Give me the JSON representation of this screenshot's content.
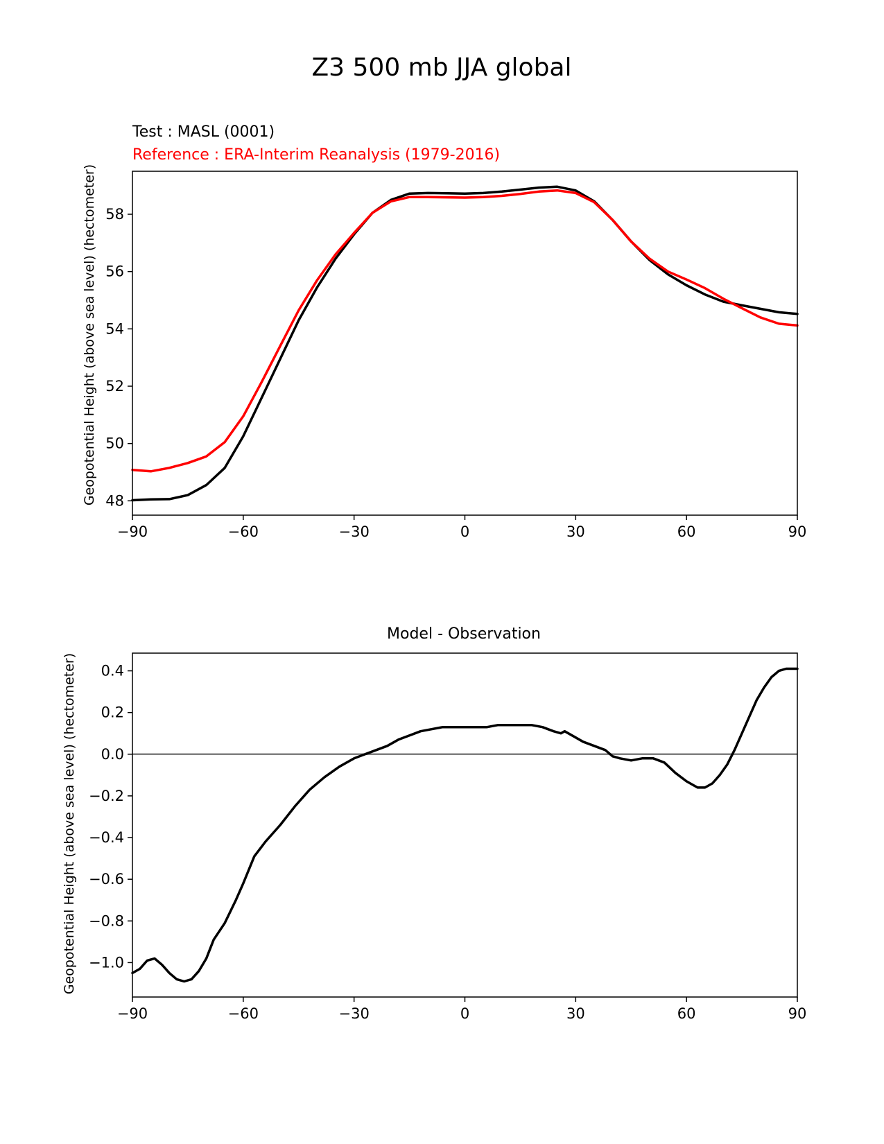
{
  "figure": {
    "title": "Z3 500 mb JJA global"
  },
  "colors": {
    "test": "#000000",
    "reference": "#ff0000",
    "diff": "#000000",
    "zero_line": "#808080"
  },
  "chart_data": [
    {
      "type": "line",
      "test_label": "Test : MASL (0001)",
      "reference_label": "Reference : ERA-Interim Reanalysis (1979-2016)",
      "xlabel": "",
      "ylabel": "Geopotential Height (above sea level) (hectometer)",
      "xlim": [
        -90,
        90
      ],
      "ylim": [
        47.5,
        59.5
      ],
      "xticks": [
        -90,
        -60,
        -30,
        0,
        30,
        60,
        90
      ],
      "xtick_labels": [
        "−90",
        "−60",
        "−30",
        "0",
        "30",
        "60",
        "90"
      ],
      "yticks": [
        48,
        50,
        52,
        54,
        56,
        58
      ],
      "ytick_labels": [
        "48",
        "50",
        "52",
        "54",
        "56",
        "58"
      ],
      "grid": false,
      "series": [
        {
          "name": "Test : MASL (0001)",
          "color": "#000000",
          "x": [
            -90,
            -85,
            -80,
            -75,
            -70,
            -65,
            -60,
            -55,
            -50,
            -45,
            -40,
            -35,
            -30,
            -25,
            -20,
            -15,
            -10,
            -5,
            0,
            5,
            10,
            15,
            20,
            25,
            30,
            35,
            40,
            45,
            50,
            55,
            60,
            65,
            70,
            75,
            80,
            85,
            90
          ],
          "y": [
            48.02,
            48.05,
            48.06,
            48.2,
            48.55,
            49.15,
            50.25,
            51.6,
            52.95,
            54.3,
            55.45,
            56.45,
            57.3,
            58.05,
            58.5,
            58.72,
            58.74,
            58.73,
            58.72,
            58.74,
            58.79,
            58.86,
            58.93,
            58.96,
            58.83,
            58.45,
            57.8,
            57.05,
            56.4,
            55.9,
            55.52,
            55.2,
            54.95,
            54.82,
            54.7,
            54.58,
            54.52
          ]
        },
        {
          "name": "Reference : ERA-Interim Reanalysis (1979-2016)",
          "color": "#ff0000",
          "x": [
            -90,
            -85,
            -80,
            -75,
            -70,
            -65,
            -60,
            -55,
            -50,
            -45,
            -40,
            -35,
            -30,
            -25,
            -20,
            -15,
            -10,
            -5,
            0,
            5,
            10,
            15,
            20,
            25,
            30,
            35,
            40,
            45,
            50,
            55,
            60,
            65,
            70,
            75,
            80,
            85,
            90
          ],
          "y": [
            49.08,
            49.03,
            49.15,
            49.32,
            49.55,
            50.05,
            50.95,
            52.15,
            53.4,
            54.65,
            55.7,
            56.6,
            57.35,
            58.05,
            58.45,
            58.6,
            58.6,
            58.59,
            58.58,
            58.6,
            58.64,
            58.71,
            58.79,
            58.83,
            58.74,
            58.42,
            57.8,
            57.05,
            56.45,
            56.0,
            55.72,
            55.42,
            55.05,
            54.72,
            54.4,
            54.18,
            54.12
          ]
        }
      ]
    },
    {
      "type": "line",
      "title": "Model - Observation",
      "xlabel": "",
      "ylabel": "Geopotential Height (above sea level) (hectometer)",
      "xlim": [
        -90,
        90
      ],
      "ylim": [
        -1.165,
        0.485
      ],
      "xticks": [
        -90,
        -60,
        -30,
        0,
        30,
        60,
        90
      ],
      "xtick_labels": [
        "−90",
        "−60",
        "−30",
        "0",
        "30",
        "60",
        "90"
      ],
      "yticks": [
        0.4,
        0.2,
        0.0,
        -0.2,
        -0.4,
        -0.6,
        -0.8,
        -1.0
      ],
      "ytick_labels": [
        "0.4",
        "0.2",
        "0.0",
        "−0.2",
        "−0.4",
        "−0.6",
        "−0.8",
        "−1.0"
      ],
      "grid": false,
      "reference_line": 0.0,
      "series": [
        {
          "name": "",
          "color": "#000000",
          "x": [
            -90,
            -88,
            -86,
            -84,
            -82,
            -80,
            -78,
            -76,
            -74,
            -72,
            -70,
            -68,
            -65,
            -62,
            -60,
            -57,
            -54,
            -50,
            -46,
            -42,
            -38,
            -34,
            -30,
            -27,
            -24,
            -21,
            -18,
            -15,
            -12,
            -9,
            -6,
            -3,
            0,
            3,
            6,
            9,
            12,
            15,
            18,
            21,
            24,
            26,
            27,
            28,
            30,
            32,
            35,
            38,
            40,
            42,
            45,
            48,
            51,
            54,
            57,
            60,
            63,
            65,
            67,
            69,
            71,
            73,
            75,
            77,
            79,
            81,
            83,
            85,
            87,
            89,
            90
          ],
          "y": [
            -1.05,
            -1.03,
            -0.99,
            -0.98,
            -1.01,
            -1.05,
            -1.08,
            -1.09,
            -1.08,
            -1.04,
            -0.98,
            -0.89,
            -0.81,
            -0.7,
            -0.62,
            -0.49,
            -0.42,
            -0.34,
            -0.25,
            -0.17,
            -0.11,
            -0.06,
            -0.02,
            0.0,
            0.02,
            0.04,
            0.07,
            0.09,
            0.11,
            0.12,
            0.13,
            0.13,
            0.13,
            0.13,
            0.13,
            0.14,
            0.14,
            0.14,
            0.14,
            0.13,
            0.11,
            0.1,
            0.11,
            0.1,
            0.08,
            0.06,
            0.04,
            0.02,
            -0.01,
            -0.02,
            -0.03,
            -0.02,
            -0.02,
            -0.04,
            -0.09,
            -0.13,
            -0.16,
            -0.16,
            -0.14,
            -0.1,
            -0.05,
            0.02,
            0.1,
            0.18,
            0.26,
            0.32,
            0.37,
            0.4,
            0.41,
            0.41,
            0.41
          ]
        }
      ]
    }
  ]
}
